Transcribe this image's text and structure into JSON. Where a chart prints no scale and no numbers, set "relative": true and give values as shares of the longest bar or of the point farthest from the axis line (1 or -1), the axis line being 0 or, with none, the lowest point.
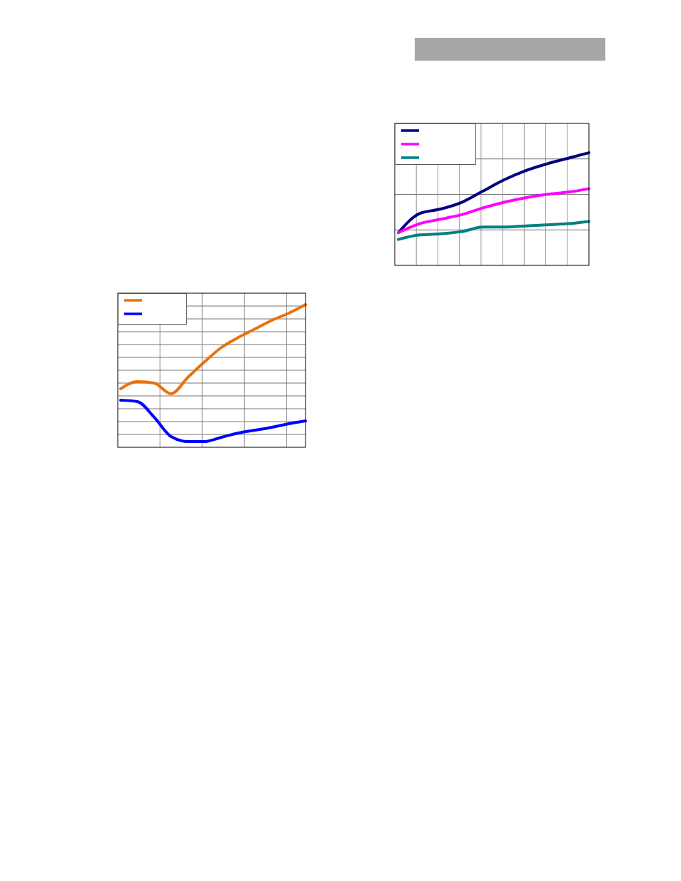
{
  "chart_data": [
    {
      "type": "line",
      "relative": true,
      "categories": [
        null,
        null,
        null,
        null,
        null,
        null,
        null,
        null,
        null,
        null
      ],
      "grid": true,
      "series": [
        {
          "color": "#000080",
          "values": [
            0.29,
            0.46,
            0.5,
            0.56,
            0.66,
            0.76,
            0.84,
            0.9,
            0.95,
            1
          ]
        },
        {
          "color": "#ff00ff",
          "values": [
            0.29,
            0.37,
            0.41,
            0.45,
            0.51,
            0.56,
            0.6,
            0.63,
            0.65,
            0.68
          ]
        },
        {
          "color": "#008080",
          "values": [
            0.23,
            0.27,
            0.28,
            0.3,
            0.34,
            0.34,
            0.35,
            0.36,
            0.37,
            0.39
          ]
        }
      ]
    },
    {
      "type": "line",
      "relative": true,
      "categories": [
        null,
        null,
        null,
        null,
        null,
        null,
        null,
        null,
        null,
        null,
        null,
        null
      ],
      "grid": true,
      "series": [
        {
          "color": "#e8720c",
          "values": [
            0.41,
            0.46,
            0.45,
            0.375,
            0.49,
            0.6,
            0.7,
            0.77,
            0.83,
            0.89,
            0.94,
            1
          ]
        },
        {
          "color": "#0000ff",
          "values": [
            0.33,
            0.32,
            0.21,
            0.075,
            0.04,
            0.04,
            0.07,
            0.1,
            0.12,
            0.14,
            0.165,
            0.185
          ]
        }
      ]
    }
  ]
}
